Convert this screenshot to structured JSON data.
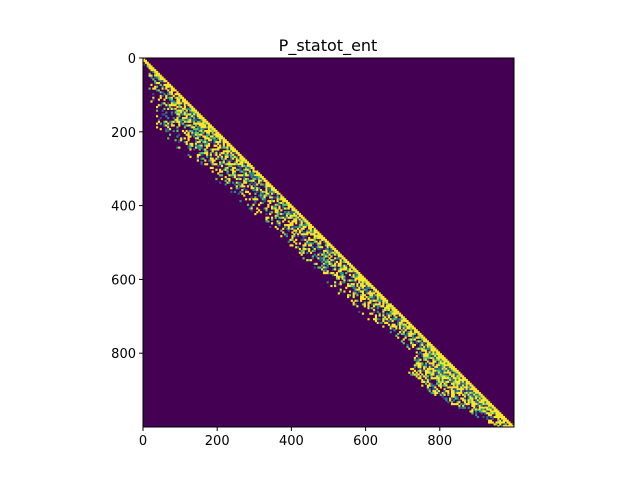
{
  "chart_data": {
    "type": "heatmap",
    "title": "P_statot_ent",
    "xlabel": "",
    "ylabel": "",
    "xlim": [
      0,
      1000
    ],
    "ylim": [
      1000,
      0
    ],
    "x_ticks": [
      0,
      200,
      400,
      600,
      800
    ],
    "y_ticks": [
      0,
      200,
      400,
      600,
      800
    ],
    "colormap": "viridis",
    "colors": {
      "background": "#440154",
      "high": "#fde725",
      "mid_teal": "#21918c",
      "mid_green": "#5ec962",
      "mid_blue": "#3b528b"
    },
    "grid": false,
    "legend": "none",
    "structure": {
      "description_of_pattern": "lower-triangular band along the main diagonal",
      "diagonal": "y = x",
      "band_width_at_row": [
        {
          "row": 0,
          "width": 5
        },
        {
          "row": 100,
          "width": 80
        },
        {
          "row": 200,
          "width": 160
        },
        {
          "row": 300,
          "width": 130
        },
        {
          "row": 400,
          "width": 120
        },
        {
          "row": 500,
          "width": 110
        },
        {
          "row": 600,
          "width": 110
        },
        {
          "row": 700,
          "width": 100
        },
        {
          "row": 800,
          "width": 60
        },
        {
          "row": 850,
          "width": 140
        },
        {
          "row": 900,
          "width": 130
        },
        {
          "row": 950,
          "width": 90
        },
        {
          "row": 1000,
          "width": 40
        }
      ]
    }
  }
}
